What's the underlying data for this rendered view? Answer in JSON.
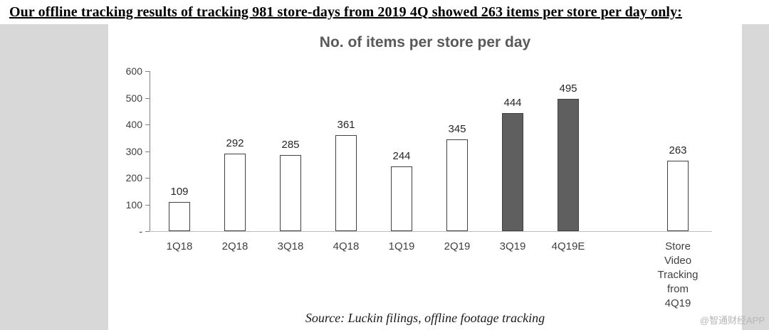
{
  "header": {
    "title": "Our offline tracking results of tracking 981 store-days from 2019 4Q showed 263 items per store per day only:"
  },
  "chart_data": {
    "type": "bar",
    "title": "No. of items per store per day",
    "categories": [
      "1Q18",
      "2Q18",
      "3Q18",
      "4Q18",
      "1Q19",
      "2Q19",
      "3Q19",
      "4Q19E",
      "Store Video Tracking from 4Q19"
    ],
    "values": [
      109,
      292,
      285,
      361,
      244,
      345,
      444,
      495,
      263
    ],
    "bar_styles": [
      "light",
      "light",
      "light",
      "light",
      "light",
      "light",
      "dark",
      "dark",
      "light"
    ],
    "xlabel": "",
    "ylabel": "",
    "ylim": [
      0,
      600
    ],
    "ytick_labels": [
      "600",
      "500",
      "400",
      "300",
      "200",
      "100",
      "-"
    ],
    "grid": false,
    "legend": "none",
    "colors": {
      "bar_fill": "#ffffff",
      "bar_highlight": "#5f5f5f",
      "bar_border": "#404040",
      "title_text": "#595959"
    }
  },
  "footer": {
    "source": "Source: Luckin filings, offline footage tracking",
    "watermark": "@智通财经APP"
  }
}
